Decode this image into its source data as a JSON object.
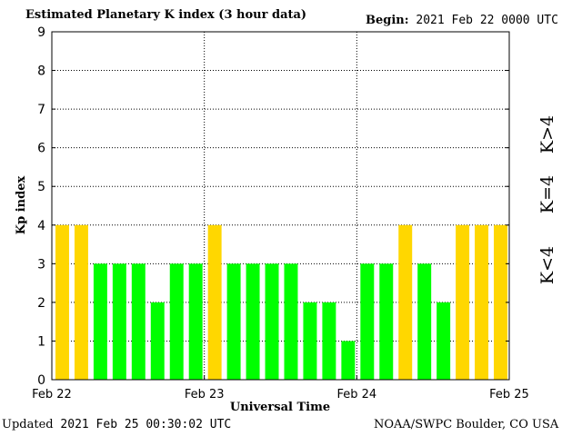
{
  "header": {
    "title": "Estimated Planetary K index (3 hour data)",
    "begin_label": "Begin:",
    "begin_value": "2021 Feb 22 0000 UTC"
  },
  "footer": {
    "updated_label": "Updated",
    "updated_value": "2021 Feb 25 00:30:02 UTC",
    "credit": "NOAA/SWPC Boulder, CO USA"
  },
  "legend": {
    "low": "K<4",
    "mid": "K=4",
    "high": "K>4"
  },
  "colors": {
    "low": "#00ff00",
    "mid": "#ffd700",
    "high": "#ff2400"
  },
  "chart_data": {
    "type": "bar",
    "title": "Estimated Planetary K index (3 hour data)",
    "xlabel": "Universal Time",
    "ylabel": "Kp index",
    "ylim": [
      0,
      9
    ],
    "yticks": [
      "0",
      "1",
      "2",
      "3",
      "4",
      "5",
      "6",
      "7",
      "8",
      "9"
    ],
    "xticks": [
      "Feb 22",
      "Feb 23",
      "Feb 24",
      "Feb 25"
    ],
    "interval_hours": 3,
    "grid": true,
    "values": [
      4,
      4,
      3,
      3,
      3,
      2,
      3,
      3,
      4,
      3,
      3,
      3,
      3,
      2,
      2,
      1,
      3,
      3,
      4,
      3,
      2,
      4,
      4,
      4
    ]
  }
}
